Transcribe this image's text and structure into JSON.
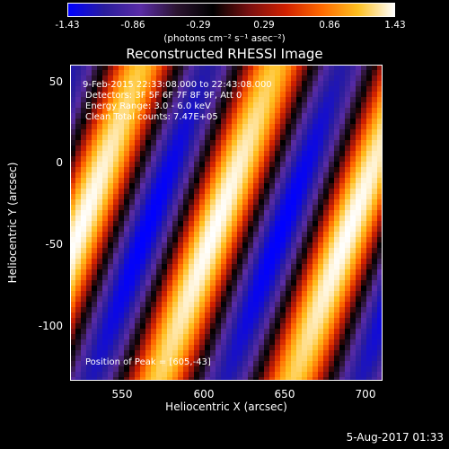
{
  "chart_data": {
    "type": "heatmap",
    "title": "Reconstructed RHESSI Image",
    "xlabel": "Heliocentric X (arcsec)",
    "ylabel": "Heliocentric Y (arcsec)",
    "xlim": [
      518,
      710
    ],
    "ylim": [
      -132,
      62
    ],
    "x_ticks": [
      "550",
      "600",
      "650",
      "700"
    ],
    "y_ticks": [
      "50",
      "0",
      "-50",
      "-100"
    ],
    "colorbar": {
      "ticks": [
        "-1.43",
        "-0.86",
        "-0.29",
        "0.29",
        "0.86",
        "1.43"
      ],
      "range": [
        -1.43,
        1.43
      ],
      "units_label": "(photons cm⁻² s⁻¹ asec⁻²)"
    },
    "annotations": {
      "time_range": "9-Feb-2015 22:33:08.000 to 22:43:08.000",
      "detectors": "Detectors: 3F 5F 6F 7F 8F 9F, Att 0",
      "energy": "Energy Range: 3.0 - 6.0 keV",
      "clean": "Clean     Total counts: 7.47E+05",
      "peak": "Position of Peak = [605,-43]"
    },
    "peak": [
      605,
      -43
    ],
    "colormap": [
      "#0000ff",
      "#2a1d9c",
      "#5a2ca6",
      "#2b1430",
      "#000000",
      "#7a1010",
      "#d02000",
      "#ff6a00",
      "#ffc020",
      "#ffffff"
    ]
  },
  "footer": {
    "timestamp": "5-Aug-2017 01:33"
  }
}
